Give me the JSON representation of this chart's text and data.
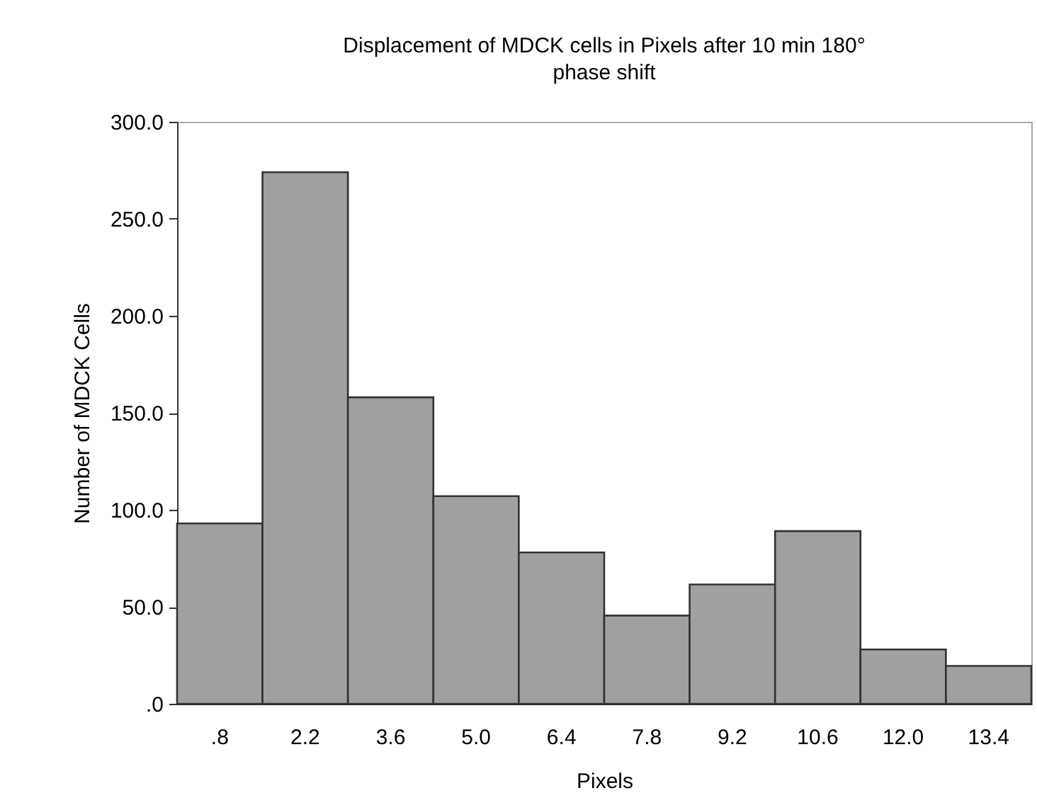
{
  "chart_data": {
    "type": "bar",
    "title": "Displacement of MDCK cells  in Pixels after 10 min 180°\nphase shift",
    "xlabel": "Pixels",
    "ylabel": "Number of MDCK Cells",
    "categories": [
      ".8",
      "2.2",
      "3.6",
      "5.0",
      "6.4",
      "7.8",
      "9.2",
      "10.6",
      "12.0",
      "13.4"
    ],
    "values": [
      93,
      274,
      158,
      107,
      78,
      45.5,
      61.5,
      89,
      28,
      19.5
    ],
    "color": "#a0a0a0",
    "ylim": [
      0,
      300
    ],
    "yticks": [
      {
        "value": 0,
        "label": ".0"
      },
      {
        "value": 50,
        "label": "50.0"
      },
      {
        "value": 100,
        "label": "100.0"
      },
      {
        "value": 150,
        "label": "150.0"
      },
      {
        "value": 200,
        "label": "200.0"
      },
      {
        "value": 250,
        "label": "250.0"
      },
      {
        "value": 300,
        "label": "300.0"
      }
    ],
    "grid": false
  }
}
